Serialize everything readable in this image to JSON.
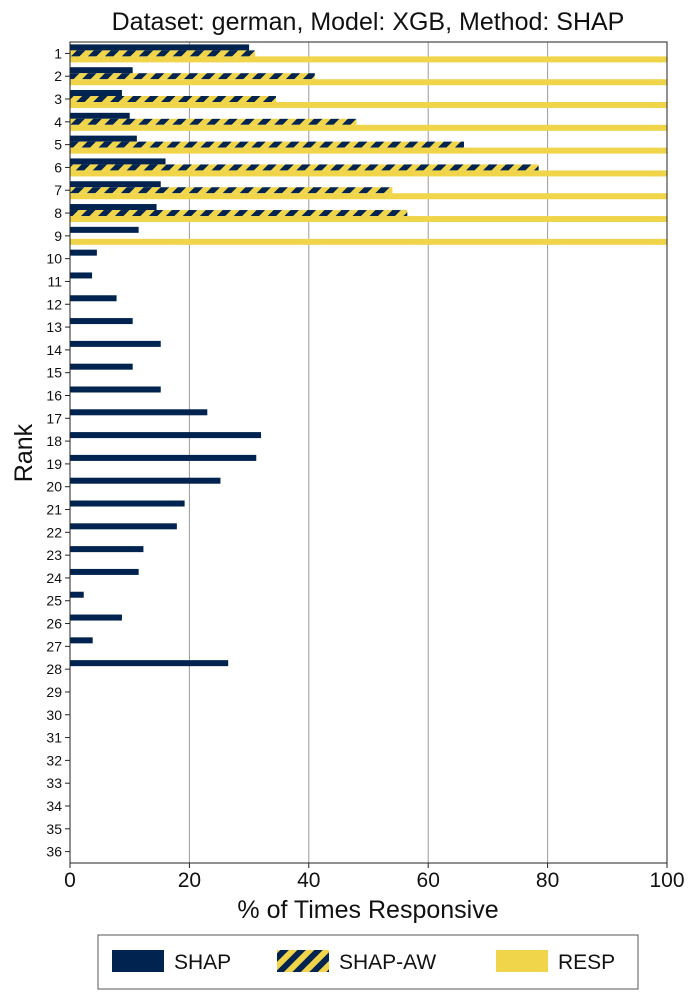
{
  "chart_data": {
    "type": "bar",
    "orientation": "horizontal",
    "title": "Dataset: german, Model: XGB, Method: SHAP",
    "xlabel": "% of Times Responsive",
    "ylabel": "Rank",
    "xlim": [
      0,
      100
    ],
    "xticks": [
      0,
      20,
      40,
      60,
      80,
      100
    ],
    "x_grid": true,
    "legend_position": "bottom",
    "categories": [
      "1",
      "2",
      "3",
      "4",
      "5",
      "6",
      "7",
      "8",
      "9",
      "10",
      "11",
      "12",
      "13",
      "14",
      "15",
      "16",
      "17",
      "18",
      "19",
      "20",
      "21",
      "22",
      "23",
      "24",
      "25",
      "26",
      "27",
      "28",
      "29",
      "30",
      "31",
      "32",
      "33",
      "34",
      "35",
      "36"
    ],
    "series": [
      {
        "name": "SHAP",
        "color": "#00234f",
        "pattern": "solid",
        "values": [
          30,
          10.5,
          8.7,
          10,
          11.2,
          16,
          15.2,
          14.5,
          11.5,
          4.5,
          3.7,
          7.8,
          10.5,
          15.2,
          10.5,
          15.2,
          23,
          32,
          31.2,
          25.2,
          19.2,
          17.9,
          12.3,
          11.5,
          2.3,
          8.7,
          3.8,
          26.5,
          0,
          0,
          0,
          0,
          0,
          0,
          0,
          0
        ]
      },
      {
        "name": "SHAP-AW",
        "color": "#00234f",
        "pattern": "hatched",
        "hatch_color": "#f0d44a",
        "values": [
          31,
          41,
          34.5,
          48,
          66,
          78.5,
          54,
          56.5,
          0,
          0,
          0,
          0,
          0,
          0,
          0,
          0,
          0,
          0,
          0,
          0,
          0,
          0,
          0,
          0,
          0,
          0,
          0,
          0,
          0,
          0,
          0,
          0,
          0,
          0,
          0,
          0
        ]
      },
      {
        "name": "RESP",
        "color": "#f0d44a",
        "pattern": "solid",
        "values": [
          100,
          100,
          100,
          100,
          100,
          100,
          100,
          100,
          100,
          0,
          0,
          0,
          0,
          0,
          0,
          0,
          0,
          0,
          0,
          0,
          0,
          0,
          0,
          0,
          0,
          0,
          0,
          0,
          0,
          0,
          0,
          0,
          0,
          0,
          0,
          0
        ]
      }
    ]
  }
}
